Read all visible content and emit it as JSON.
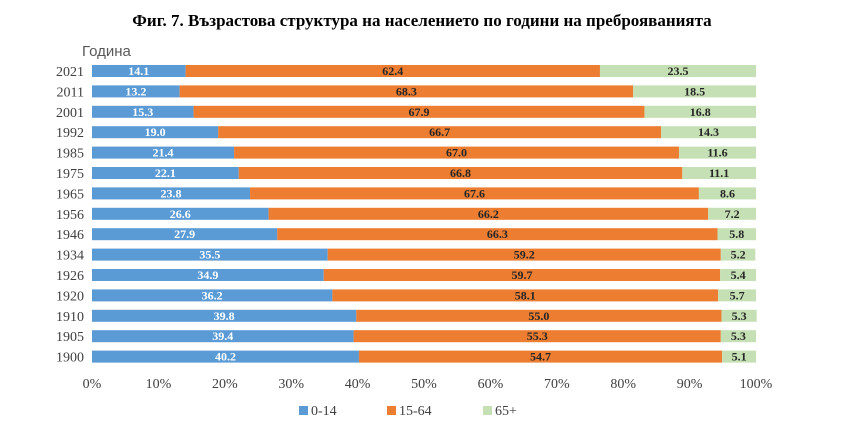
{
  "chart_data": {
    "type": "bar",
    "orientation": "horizontal",
    "stacked": "percent",
    "title": "Фиг. 7. Възрастова структура на населението по години на преброяванията",
    "ylabel": "Година",
    "xlabel": "",
    "categories": [
      "2021",
      "2011",
      "2001",
      "1992",
      "1985",
      "1975",
      "1965",
      "1956",
      "1946",
      "1934",
      "1926",
      "1920",
      "1910",
      "1905",
      "1900"
    ],
    "series": [
      {
        "name": "0-14",
        "color": "#5B9BD5",
        "label_color": "#ffffff",
        "values": [
          14.1,
          13.2,
          15.3,
          19.0,
          21.4,
          22.1,
          23.8,
          26.6,
          27.9,
          35.5,
          34.9,
          36.2,
          39.8,
          39.4,
          40.2
        ]
      },
      {
        "name": "15-64",
        "color": "#ED7D31",
        "label_color": "#262626",
        "values": [
          62.4,
          68.3,
          67.9,
          66.7,
          67.0,
          66.8,
          67.6,
          66.2,
          66.3,
          59.2,
          59.7,
          58.1,
          55.0,
          55.3,
          54.7
        ]
      },
      {
        "name": "65+",
        "color": "#C5E0B4",
        "label_color": "#262626",
        "values": [
          23.5,
          18.5,
          16.8,
          14.3,
          11.6,
          11.1,
          8.6,
          7.2,
          5.8,
          5.2,
          5.4,
          5.7,
          5.3,
          5.3,
          5.1
        ]
      }
    ],
    "x_ticks": [
      "0%",
      "10%",
      "20%",
      "30%",
      "40%",
      "50%",
      "60%",
      "70%",
      "80%",
      "90%",
      "100%"
    ],
    "xlim": [
      0,
      100
    ],
    "grid": false,
    "legend_position": "bottom"
  }
}
